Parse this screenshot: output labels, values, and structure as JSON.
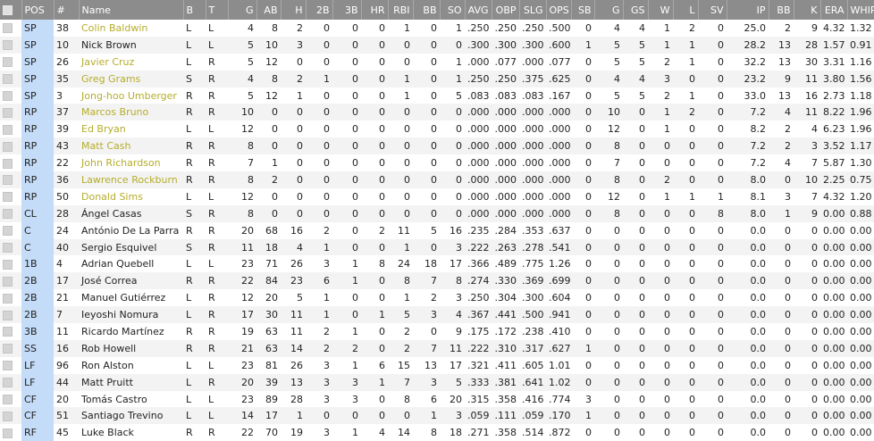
{
  "columns": [
    "POS",
    "#",
    "Name",
    "B",
    "T",
    "G",
    "AB",
    "H",
    "2B",
    "3B",
    "HR",
    "RBI",
    "BB",
    "SO",
    "AVG",
    "OBP",
    "SLG",
    "OPS",
    "SB",
    "G",
    "GS",
    "W",
    "L",
    "SV",
    "IP",
    "BB",
    "K",
    "ERA",
    "WHIP"
  ],
  "highlight_color": "#b5ad2c",
  "rows": [
    {
      "hl": true,
      "cells": [
        "SP",
        "38",
        "Colin Baldwin",
        "L",
        "L",
        "4",
        "8",
        "2",
        "0",
        "0",
        "0",
        "1",
        "0",
        "1",
        ".250",
        ".250",
        ".250",
        ".500",
        "0",
        "4",
        "4",
        "1",
        "2",
        "0",
        "25.0",
        "2",
        "9",
        "4.32",
        "1.32"
      ]
    },
    {
      "hl": false,
      "cells": [
        "SP",
        "10",
        "Nick Brown",
        "L",
        "L",
        "5",
        "10",
        "3",
        "0",
        "0",
        "0",
        "0",
        "0",
        "0",
        ".300",
        ".300",
        ".300",
        ".600",
        "1",
        "5",
        "5",
        "1",
        "1",
        "0",
        "28.2",
        "13",
        "28",
        "1.57",
        "0.91"
      ]
    },
    {
      "hl": true,
      "cells": [
        "SP",
        "26",
        "Javier Cruz",
        "L",
        "R",
        "5",
        "12",
        "0",
        "0",
        "0",
        "0",
        "0",
        "0",
        "1",
        ".000",
        ".077",
        ".000",
        ".077",
        "0",
        "5",
        "5",
        "2",
        "1",
        "0",
        "32.2",
        "13",
        "30",
        "3.31",
        "1.16"
      ]
    },
    {
      "hl": true,
      "cells": [
        "SP",
        "35",
        "Greg Grams",
        "S",
        "R",
        "4",
        "8",
        "2",
        "1",
        "0",
        "0",
        "1",
        "0",
        "1",
        ".250",
        ".250",
        ".375",
        ".625",
        "0",
        "4",
        "4",
        "3",
        "0",
        "0",
        "23.2",
        "9",
        "11",
        "3.80",
        "1.56"
      ]
    },
    {
      "hl": true,
      "cells": [
        "SP",
        "3",
        "Jong-hoo Umberger",
        "R",
        "R",
        "5",
        "12",
        "1",
        "0",
        "0",
        "0",
        "1",
        "0",
        "5",
        ".083",
        ".083",
        ".083",
        ".167",
        "0",
        "5",
        "5",
        "2",
        "1",
        "0",
        "33.0",
        "13",
        "16",
        "2.73",
        "1.18"
      ]
    },
    {
      "hl": true,
      "cells": [
        "RP",
        "37",
        "Marcos Bruno",
        "R",
        "R",
        "10",
        "0",
        "0",
        "0",
        "0",
        "0",
        "0",
        "0",
        "0",
        ".000",
        ".000",
        ".000",
        ".000",
        "0",
        "10",
        "0",
        "1",
        "2",
        "0",
        "7.2",
        "4",
        "11",
        "8.22",
        "1.96"
      ]
    },
    {
      "hl": true,
      "cells": [
        "RP",
        "39",
        "Ed Bryan",
        "L",
        "L",
        "12",
        "0",
        "0",
        "0",
        "0",
        "0",
        "0",
        "0",
        "0",
        ".000",
        ".000",
        ".000",
        ".000",
        "0",
        "12",
        "0",
        "1",
        "0",
        "0",
        "8.2",
        "2",
        "4",
        "6.23",
        "1.96"
      ]
    },
    {
      "hl": true,
      "cells": [
        "RP",
        "43",
        "Matt Cash",
        "R",
        "R",
        "8",
        "0",
        "0",
        "0",
        "0",
        "0",
        "0",
        "0",
        "0",
        ".000",
        ".000",
        ".000",
        ".000",
        "0",
        "8",
        "0",
        "0",
        "0",
        "0",
        "7.2",
        "2",
        "3",
        "3.52",
        "1.17"
      ]
    },
    {
      "hl": true,
      "cells": [
        "RP",
        "22",
        "John Richardson",
        "R",
        "R",
        "7",
        "1",
        "0",
        "0",
        "0",
        "0",
        "0",
        "0",
        "0",
        ".000",
        ".000",
        ".000",
        ".000",
        "0",
        "7",
        "0",
        "0",
        "0",
        "0",
        "7.2",
        "4",
        "7",
        "5.87",
        "1.30"
      ]
    },
    {
      "hl": true,
      "cells": [
        "RP",
        "36",
        "Lawrence Rockburn",
        "R",
        "R",
        "8",
        "2",
        "0",
        "0",
        "0",
        "0",
        "0",
        "0",
        "0",
        ".000",
        ".000",
        ".000",
        ".000",
        "0",
        "8",
        "0",
        "2",
        "0",
        "0",
        "8.0",
        "0",
        "10",
        "2.25",
        "0.75"
      ]
    },
    {
      "hl": true,
      "cells": [
        "RP",
        "50",
        "Donald Sims",
        "L",
        "L",
        "12",
        "0",
        "0",
        "0",
        "0",
        "0",
        "0",
        "0",
        "0",
        ".000",
        ".000",
        ".000",
        ".000",
        "0",
        "12",
        "0",
        "1",
        "1",
        "1",
        "8.1",
        "3",
        "7",
        "4.32",
        "1.20"
      ]
    },
    {
      "hl": false,
      "cells": [
        "CL",
        "28",
        "Ángel Casas",
        "S",
        "R",
        "8",
        "0",
        "0",
        "0",
        "0",
        "0",
        "0",
        "0",
        "0",
        ".000",
        ".000",
        ".000",
        ".000",
        "0",
        "8",
        "0",
        "0",
        "0",
        "8",
        "8.0",
        "1",
        "9",
        "0.00",
        "0.88"
      ]
    },
    {
      "hl": false,
      "cells": [
        "C",
        "24",
        "António De La Parra",
        "R",
        "R",
        "20",
        "68",
        "16",
        "2",
        "0",
        "2",
        "11",
        "5",
        "16",
        ".235",
        ".284",
        ".353",
        ".637",
        "0",
        "0",
        "0",
        "0",
        "0",
        "0",
        "0.0",
        "0",
        "0",
        "0.00",
        "0.00"
      ]
    },
    {
      "hl": false,
      "cells": [
        "C",
        "40",
        "Sergio Esquivel",
        "S",
        "R",
        "11",
        "18",
        "4",
        "1",
        "0",
        "0",
        "1",
        "0",
        "3",
        ".222",
        ".263",
        ".278",
        ".541",
        "0",
        "0",
        "0",
        "0",
        "0",
        "0",
        "0.0",
        "0",
        "0",
        "0.00",
        "0.00"
      ]
    },
    {
      "hl": false,
      "cells": [
        "1B",
        "4",
        "Adrian Quebell",
        "L",
        "L",
        "23",
        "71",
        "26",
        "3",
        "1",
        "8",
        "24",
        "18",
        "17",
        ".366",
        ".489",
        ".775",
        "1.264",
        "0",
        "0",
        "0",
        "0",
        "0",
        "0",
        "0.0",
        "0",
        "0",
        "0.00",
        "0.00"
      ]
    },
    {
      "hl": false,
      "cells": [
        "2B",
        "17",
        "José Correa",
        "R",
        "R",
        "22",
        "84",
        "23",
        "6",
        "1",
        "0",
        "8",
        "7",
        "8",
        ".274",
        ".330",
        ".369",
        ".699",
        "0",
        "0",
        "0",
        "0",
        "0",
        "0",
        "0.0",
        "0",
        "0",
        "0.00",
        "0.00"
      ]
    },
    {
      "hl": false,
      "cells": [
        "2B",
        "21",
        "Manuel Gutiérrez",
        "L",
        "R",
        "12",
        "20",
        "5",
        "1",
        "0",
        "0",
        "1",
        "2",
        "3",
        ".250",
        ".304",
        ".300",
        ".604",
        "0",
        "0",
        "0",
        "0",
        "0",
        "0",
        "0.0",
        "0",
        "0",
        "0.00",
        "0.00"
      ]
    },
    {
      "hl": false,
      "cells": [
        "2B",
        "7",
        "Ieyoshi Nomura",
        "L",
        "R",
        "17",
        "30",
        "11",
        "1",
        "0",
        "1",
        "5",
        "3",
        "4",
        ".367",
        ".441",
        ".500",
        ".941",
        "0",
        "0",
        "0",
        "0",
        "0",
        "0",
        "0.0",
        "0",
        "0",
        "0.00",
        "0.00"
      ]
    },
    {
      "hl": false,
      "cells": [
        "3B",
        "11",
        "Ricardo Martínez",
        "R",
        "R",
        "19",
        "63",
        "11",
        "2",
        "1",
        "0",
        "2",
        "0",
        "9",
        ".175",
        ".172",
        ".238",
        ".410",
        "0",
        "0",
        "0",
        "0",
        "0",
        "0",
        "0.0",
        "0",
        "0",
        "0.00",
        "0.00"
      ]
    },
    {
      "hl": false,
      "cells": [
        "SS",
        "16",
        "Rob Howell",
        "R",
        "R",
        "21",
        "63",
        "14",
        "2",
        "2",
        "0",
        "2",
        "7",
        "11",
        ".222",
        ".310",
        ".317",
        ".627",
        "1",
        "0",
        "0",
        "0",
        "0",
        "0",
        "0.0",
        "0",
        "0",
        "0.00",
        "0.00"
      ]
    },
    {
      "hl": false,
      "cells": [
        "LF",
        "96",
        "Ron Alston",
        "L",
        "L",
        "23",
        "81",
        "26",
        "3",
        "1",
        "6",
        "15",
        "13",
        "17",
        ".321",
        ".411",
        ".605",
        "1.015",
        "0",
        "0",
        "0",
        "0",
        "0",
        "0",
        "0.0",
        "0",
        "0",
        "0.00",
        "0.00"
      ]
    },
    {
      "hl": false,
      "cells": [
        "LF",
        "44",
        "Matt Pruitt",
        "L",
        "R",
        "20",
        "39",
        "13",
        "3",
        "3",
        "1",
        "7",
        "3",
        "5",
        ".333",
        ".381",
        ".641",
        "1.022",
        "0",
        "0",
        "0",
        "0",
        "0",
        "0",
        "0.0",
        "0",
        "0",
        "0.00",
        "0.00"
      ]
    },
    {
      "hl": false,
      "cells": [
        "CF",
        "20",
        "Tomás Castro",
        "L",
        "L",
        "23",
        "89",
        "28",
        "3",
        "3",
        "0",
        "8",
        "6",
        "20",
        ".315",
        ".358",
        ".416",
        ".774",
        "3",
        "0",
        "0",
        "0",
        "0",
        "0",
        "0.0",
        "0",
        "0",
        "0.00",
        "0.00"
      ]
    },
    {
      "hl": false,
      "cells": [
        "CF",
        "51",
        "Santiago Trevino",
        "L",
        "L",
        "14",
        "17",
        "1",
        "0",
        "0",
        "0",
        "0",
        "1",
        "3",
        ".059",
        ".111",
        ".059",
        ".170",
        "1",
        "0",
        "0",
        "0",
        "0",
        "0",
        "0.0",
        "0",
        "0",
        "0.00",
        "0.00"
      ]
    },
    {
      "hl": false,
      "cells": [
        "RF",
        "45",
        "Luke Black",
        "R",
        "R",
        "22",
        "70",
        "19",
        "3",
        "1",
        "4",
        "14",
        "8",
        "18",
        ".271",
        ".358",
        ".514",
        ".872",
        "0",
        "0",
        "0",
        "0",
        "0",
        "0",
        "0.0",
        "0",
        "0",
        "0.00",
        "0.00"
      ]
    }
  ]
}
